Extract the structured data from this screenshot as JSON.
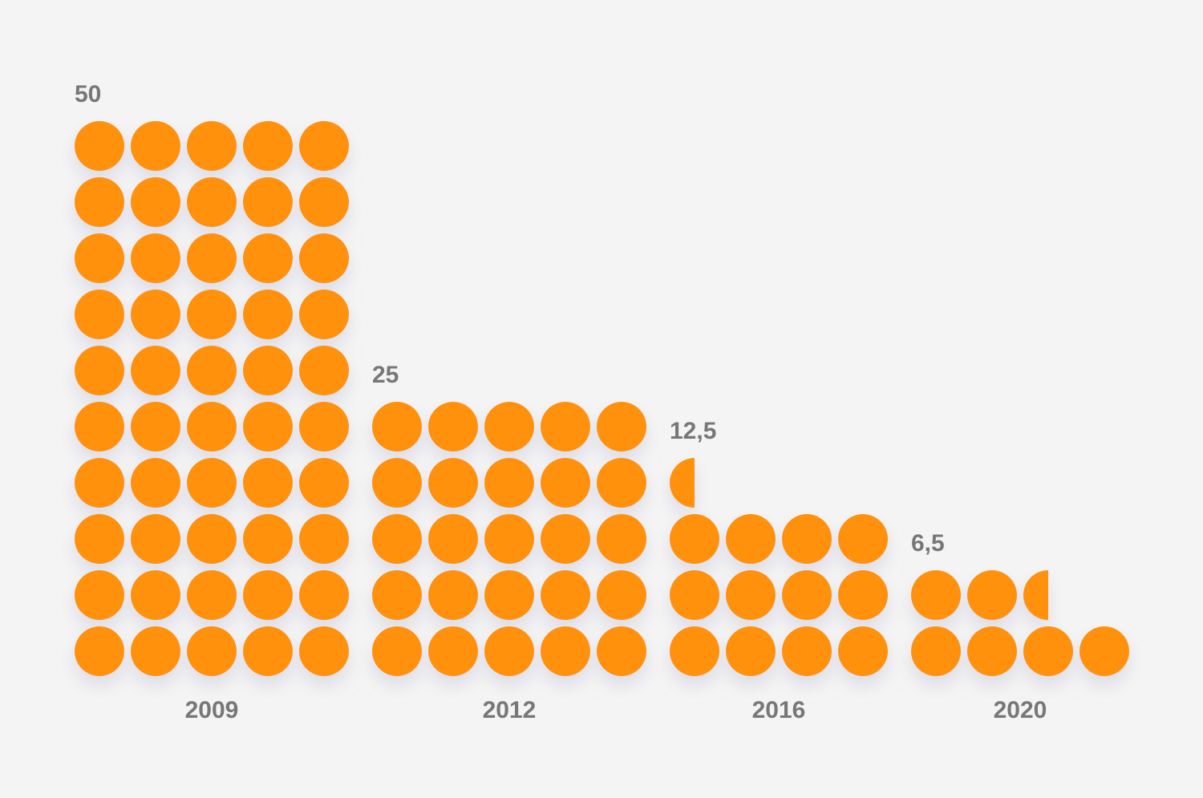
{
  "chart_data": {
    "type": "bar",
    "categories": [
      "2009",
      "2012",
      "2016",
      "2020"
    ],
    "values": [
      50,
      25,
      12.5,
      6.5
    ],
    "value_labels": [
      "50",
      "25",
      "12,5",
      "6,5"
    ],
    "unit_per_dot": 1,
    "title": "",
    "xlabel": "",
    "ylabel": "",
    "grid": false,
    "legend": "none"
  },
  "colors": {
    "background": "#f4f4f4",
    "dot": "#ff9110",
    "label": "#777777",
    "shadow": "#d5d5e6"
  }
}
